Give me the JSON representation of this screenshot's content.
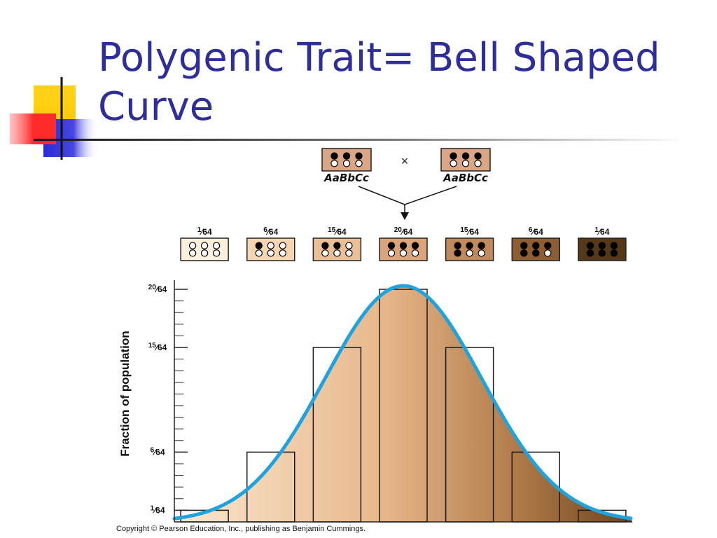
{
  "slide": {
    "title": "Polygenic Trait= Bell Shaped Curve",
    "copyright": "Copyright © Pearson Education, Inc., publishing as Benjamin Cummings."
  },
  "cross": {
    "parent1": {
      "genotype": "AaBbCc",
      "dark_dots": 3,
      "light_dots": 3,
      "color": "#dba685"
    },
    "parent2": {
      "genotype": "AaBbCc",
      "dark_dots": 3,
      "light_dots": 3,
      "color": "#dba685"
    },
    "symbol": "×"
  },
  "colors": {
    "title": "#2e2e9a",
    "curve": "#1fa3df",
    "gradient_light": "#fbe8d0",
    "gradient_dark": "#6b4520",
    "deco_yellow": "#ffd21a",
    "deco_blue": "#2b2bd6",
    "deco_red": "#ff2a2a"
  },
  "chart_data": {
    "type": "bar",
    "title": "",
    "xlabel": "",
    "ylabel": "Fraction of population",
    "categories": [
      "0",
      "1",
      "2",
      "3",
      "4",
      "5",
      "6"
    ],
    "values": [
      0.015625,
      0.09375,
      0.234375,
      0.3125,
      0.234375,
      0.09375,
      0.015625
    ],
    "bar_labels": [
      {
        "num": "1",
        "den": "64"
      },
      {
        "num": "6",
        "den": "64"
      },
      {
        "num": "15",
        "den": "64"
      },
      {
        "num": "20",
        "den": "64"
      },
      {
        "num": "15",
        "den": "64"
      },
      {
        "num": "6",
        "den": "64"
      },
      {
        "num": "1",
        "den": "64"
      }
    ],
    "dark_dots": [
      0,
      1,
      2,
      3,
      4,
      5,
      6
    ],
    "swatch_colors": [
      "#fbf0dc",
      "#f6d6b2",
      "#eabf98",
      "#dca47a",
      "#c08a5e",
      "#8d5e33",
      "#55381a"
    ],
    "yticks": [
      {
        "value": 0.015625,
        "num": "1",
        "den": "64"
      },
      {
        "value": 0.09375,
        "num": "6",
        "den": "64"
      },
      {
        "value": 0.234375,
        "num": "15",
        "den": "64"
      },
      {
        "value": 0.3125,
        "num": "20",
        "den": "64"
      }
    ],
    "ylim": [
      0,
      0.3125
    ],
    "curve": "bell",
    "grid": false
  }
}
